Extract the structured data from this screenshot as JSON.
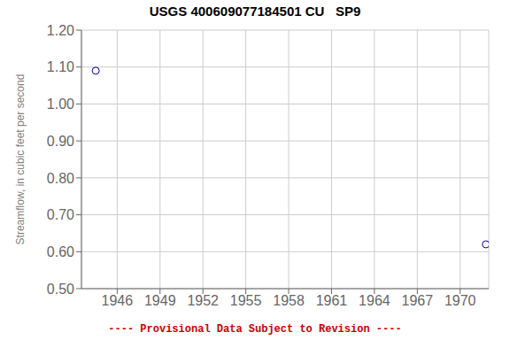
{
  "chart_data": {
    "type": "scatter",
    "title": "USGS 400609077184501 CU   SP9",
    "ylabel": "Streamflow, in cubic feet per second",
    "annotations": [
      {
        "text": "---- Provisional Data Subject to Revision ----",
        "color": "#cc0000"
      }
    ],
    "x": [
      1944.5,
      1971.8
    ],
    "values": [
      1.09,
      0.62
    ],
    "color": "#0000bb",
    "marker": "open_circle",
    "xlim": [
      1943.5,
      1972.0
    ],
    "ylim": [
      0.5,
      1.2
    ],
    "xticks": [
      1946,
      1949,
      1952,
      1955,
      1958,
      1961,
      1964,
      1967,
      1970
    ],
    "yticks": [
      {
        "value": 0.5,
        "label": "0.50"
      },
      {
        "value": 0.6,
        "label": "0.60"
      },
      {
        "value": 0.7,
        "label": "0.70"
      },
      {
        "value": 0.8,
        "label": "0.80"
      },
      {
        "value": 0.9,
        "label": "0.90"
      },
      {
        "value": 1.0,
        "label": "1.00"
      },
      {
        "value": 1.1,
        "label": "1.10"
      },
      {
        "value": 1.2,
        "label": "1.20"
      }
    ],
    "grid": true
  }
}
